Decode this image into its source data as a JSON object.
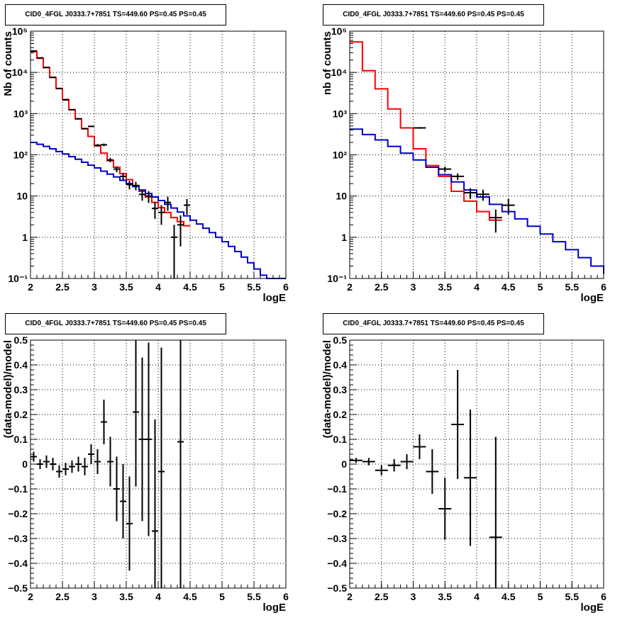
{
  "chart_data": [
    {
      "type": "line",
      "panel": "top-left",
      "title": "CID0_4FGL J0333.7+7851 TS=449.60 PS=0.45 PS=0.45",
      "xlabel": "logE",
      "ylabel": "Nb of counts",
      "xlim": [
        2,
        6
      ],
      "ylim": [
        0.1,
        100000
      ],
      "yscale": "log",
      "grid": true,
      "x_ticks": [
        2,
        2.5,
        3,
        3.5,
        4,
        4.5,
        5,
        5.5,
        6
      ],
      "x_tick_labels": [
        "2",
        "2.5",
        "3",
        "3.5",
        "4",
        "4.5",
        "5",
        "5.5",
        "6"
      ],
      "y_ticks": [
        0.1,
        1,
        10,
        100,
        1000,
        10000,
        100000
      ],
      "y_tick_labels": [
        "10⁻¹",
        "1",
        "10",
        "10²",
        "10³",
        "10⁴",
        "10⁵"
      ],
      "bin_edges": [
        2.0,
        2.1,
        2.2,
        2.3,
        2.4,
        2.5,
        2.6,
        2.7,
        2.8,
        2.9,
        3.0,
        3.1,
        3.2,
        3.3,
        3.4,
        3.5,
        3.6,
        3.7,
        3.8,
        3.9,
        4.0,
        4.1,
        4.2,
        4.3,
        4.4,
        4.5,
        4.6,
        4.7,
        4.8,
        4.9,
        5.0,
        5.1,
        5.2,
        5.3,
        5.4,
        5.5,
        5.6,
        5.7,
        5.8,
        5.9,
        6.0
      ],
      "series": [
        {
          "color": "#ff0000",
          "values": [
            32000,
            22000,
            13000,
            7500,
            4100,
            2200,
            1250,
            750,
            430,
            280,
            165,
            110,
            72,
            50,
            35,
            25,
            18,
            13,
            9.5,
            7,
            5.2,
            4.0,
            3.0,
            2.4,
            1.9
          ]
        },
        {
          "color": "#0000cc",
          "values": [
            200,
            180,
            160,
            140,
            120,
            105,
            90,
            78,
            66,
            56,
            48,
            40,
            34,
            29,
            24,
            20,
            17,
            14,
            11.5,
            9.5,
            7.8,
            6.3,
            5.1,
            4.1,
            3.3,
            2.6,
            2.1,
            1.65,
            1.3,
            1.0,
            0.78,
            0.6,
            0.45,
            0.33,
            0.24,
            0.17,
            0.12,
            0.1,
            0.1,
            0.1
          ]
        }
      ],
      "points": [
        {
          "x": 2.05,
          "y": 33000,
          "err": 180
        },
        {
          "x": 2.15,
          "y": 22500,
          "err": 150
        },
        {
          "x": 2.25,
          "y": 13200,
          "err": 115
        },
        {
          "x": 2.35,
          "y": 7600,
          "err": 87
        },
        {
          "x": 2.45,
          "y": 4050,
          "err": 64
        },
        {
          "x": 2.55,
          "y": 2150,
          "err": 46
        },
        {
          "x": 2.65,
          "y": 1240,
          "err": 35
        },
        {
          "x": 2.75,
          "y": 745,
          "err": 27
        },
        {
          "x": 2.85,
          "y": 430,
          "err": 21
        },
        {
          "x": 2.95,
          "y": 490,
          "err": 22
        },
        {
          "x": 3.05,
          "y": 170,
          "err": 13
        },
        {
          "x": 3.15,
          "y": 175,
          "err": 13
        },
        {
          "x": 3.25,
          "y": 75,
          "err": 9
        },
        {
          "x": 3.35,
          "y": 45,
          "err": 7
        },
        {
          "x": 3.45,
          "y": 30,
          "err": 5.5
        },
        {
          "x": 3.55,
          "y": 19,
          "err": 4.4
        },
        {
          "x": 3.65,
          "y": 18,
          "err": 4.2
        },
        {
          "x": 3.75,
          "y": 11,
          "err": 3.3
        },
        {
          "x": 3.85,
          "y": 10,
          "err": 3.2
        },
        {
          "x": 3.95,
          "y": 5,
          "err": 2.2
        },
        {
          "x": 4.05,
          "y": 4,
          "err": 2.0
        },
        {
          "x": 4.15,
          "y": 7,
          "err": 2.6
        },
        {
          "x": 4.25,
          "y": 1,
          "err": 1.0
        },
        {
          "x": 4.35,
          "y": 2,
          "err": 1.4
        },
        {
          "x": 4.45,
          "y": 6,
          "err": 2.45
        }
      ]
    },
    {
      "type": "line",
      "panel": "top-right",
      "title": "CID0_4FGL J0333.7+7851 TS=449.60 PS=0.45 PS=0.45",
      "xlabel": "logE",
      "ylabel": "nb of counts",
      "xlim": [
        2,
        6
      ],
      "ylim": [
        0.1,
        100000
      ],
      "yscale": "log",
      "grid": true,
      "x_ticks": [
        2,
        2.5,
        3,
        3.5,
        4,
        4.5,
        5,
        5.5,
        6
      ],
      "x_tick_labels": [
        "2",
        "2.5",
        "3",
        "3.5",
        "4",
        "4.5",
        "5",
        "5.5",
        "6"
      ],
      "y_ticks": [
        0.1,
        1,
        10,
        100,
        1000,
        10000,
        100000
      ],
      "y_tick_labels": [
        "10⁻¹",
        "1",
        "10",
        "10²",
        "10³",
        "10⁴",
        "10⁵"
      ],
      "bin_edges": [
        2.0,
        2.2,
        2.4,
        2.6,
        2.8,
        3.0,
        3.2,
        3.4,
        3.6,
        3.8,
        4.0,
        4.2,
        4.4,
        4.6,
        4.8,
        5.0,
        5.2,
        5.4,
        5.6,
        5.8,
        6.0
      ],
      "series": [
        {
          "color": "#ff0000",
          "values": [
            55000,
            11000,
            4000,
            1300,
            450,
            140,
            55,
            30,
            13,
            7.5,
            4.2,
            2.6
          ]
        },
        {
          "color": "#0000cc",
          "values": [
            420,
            310,
            230,
            160,
            110,
            75,
            50,
            33,
            22,
            14,
            9.5,
            6.3,
            4.2,
            2.8,
            1.85,
            1.2,
            0.78,
            0.5,
            0.32,
            0.2,
            0.13,
            0.1
          ]
        }
      ],
      "points": [
        {
          "x": 3.1,
          "y": 450,
          "err": 21
        },
        {
          "x": 3.5,
          "y": 45,
          "err": 7
        },
        {
          "x": 3.7,
          "y": 30,
          "err": 5.5
        },
        {
          "x": 3.9,
          "y": 12,
          "err": 3.5
        },
        {
          "x": 4.1,
          "y": 11,
          "err": 3.3
        },
        {
          "x": 4.3,
          "y": 3,
          "err": 1.7
        },
        {
          "x": 4.5,
          "y": 6,
          "err": 2.45
        }
      ]
    },
    {
      "type": "scatter",
      "panel": "bottom-left",
      "title": "CID0_4FGL J0333.7+7851 TS=449.60 PS=0.45 PS=0.45",
      "xlabel": "logE",
      "ylabel": "(data-model)/model",
      "xlim": [
        2,
        6
      ],
      "ylim": [
        -0.5,
        0.5
      ],
      "grid": true,
      "x_ticks": [
        2,
        2.5,
        3,
        3.5,
        4,
        4.5,
        5,
        5.5,
        6
      ],
      "x_tick_labels": [
        "2",
        "2.5",
        "3",
        "3.5",
        "4",
        "4.5",
        "5",
        "5.5",
        "6"
      ],
      "y_ticks": [
        -0.5,
        -0.4,
        -0.3,
        -0.2,
        -0.1,
        0,
        0.1,
        0.2,
        0.3,
        0.4,
        0.5
      ],
      "y_tick_labels": [
        "−0.5",
        "−0.4",
        "−0.3",
        "−0.2",
        "−0.1",
        "0",
        "0.1",
        "0.2",
        "0.3",
        "0.4",
        "0.5"
      ],
      "points": [
        {
          "x": 2.05,
          "y": 0.03,
          "err": 0.02
        },
        {
          "x": 2.15,
          "y": 0.0,
          "err": 0.02
        },
        {
          "x": 2.25,
          "y": 0.01,
          "err": 0.025
        },
        {
          "x": 2.35,
          "y": 0.0,
          "err": 0.025
        },
        {
          "x": 2.45,
          "y": -0.03,
          "err": 0.025
        },
        {
          "x": 2.55,
          "y": -0.02,
          "err": 0.025
        },
        {
          "x": 2.65,
          "y": -0.01,
          "err": 0.025
        },
        {
          "x": 2.75,
          "y": 0.0,
          "err": 0.03
        },
        {
          "x": 2.85,
          "y": -0.01,
          "err": 0.035
        },
        {
          "x": 2.95,
          "y": 0.04,
          "err": 0.04
        },
        {
          "x": 3.05,
          "y": 0.01,
          "err": 0.05
        },
        {
          "x": 3.15,
          "y": 0.17,
          "err": 0.09
        },
        {
          "x": 3.25,
          "y": 0.01,
          "err": 0.1
        },
        {
          "x": 3.35,
          "y": -0.1,
          "err": 0.13
        },
        {
          "x": 3.45,
          "y": -0.15,
          "err": 0.15
        },
        {
          "x": 3.55,
          "y": -0.24,
          "err": 0.19
        },
        {
          "x": 3.65,
          "y": 0.21,
          "err": 0.3
        },
        {
          "x": 3.75,
          "y": 0.1,
          "err": 0.33
        },
        {
          "x": 3.85,
          "y": 0.1,
          "err": 0.39
        },
        {
          "x": 3.95,
          "y": -0.27,
          "err": 0.45
        },
        {
          "x": 4.05,
          "y": -0.03,
          "err": 0.5
        },
        {
          "x": 4.35,
          "y": 0.09,
          "err": 0.7
        }
      ]
    },
    {
      "type": "scatter",
      "panel": "bottom-right",
      "title": "CID0_4FGL J0333.7+7851 TS=449.60 PS=0.45 PS=0.45",
      "xlabel": "logE",
      "ylabel": "(data-model)/model",
      "xlim": [
        2,
        6
      ],
      "ylim": [
        -0.5,
        0.5
      ],
      "grid": true,
      "x_ticks": [
        2,
        2.5,
        3,
        3.5,
        4,
        4.5,
        5,
        5.5,
        6
      ],
      "x_tick_labels": [
        "2",
        "2.5",
        "3",
        "3.5",
        "4",
        "4.5",
        "5",
        "5.5",
        "6"
      ],
      "y_ticks": [
        -0.5,
        -0.4,
        -0.3,
        -0.2,
        -0.1,
        0,
        0.1,
        0.2,
        0.3,
        0.4,
        0.5
      ],
      "y_tick_labels": [
        "−0.5",
        "−0.4",
        "−0.3",
        "−0.2",
        "−0.1",
        "0",
        "0.1",
        "0.2",
        "0.3",
        "0.4",
        "0.5"
      ],
      "points": [
        {
          "x": 2.1,
          "y": 0.015,
          "err": 0.01
        },
        {
          "x": 2.3,
          "y": 0.01,
          "err": 0.015
        },
        {
          "x": 2.5,
          "y": -0.025,
          "err": 0.02
        },
        {
          "x": 2.7,
          "y": -0.005,
          "err": 0.025
        },
        {
          "x": 2.9,
          "y": 0.01,
          "err": 0.03
        },
        {
          "x": 3.1,
          "y": 0.07,
          "err": 0.05
        },
        {
          "x": 3.3,
          "y": -0.03,
          "err": 0.09
        },
        {
          "x": 3.5,
          "y": -0.18,
          "err": 0.125
        },
        {
          "x": 3.7,
          "y": 0.16,
          "err": 0.22
        },
        {
          "x": 3.9,
          "y": -0.055,
          "err": 0.275
        },
        {
          "x": 4.3,
          "y": -0.295,
          "err": 0.405
        }
      ]
    }
  ]
}
